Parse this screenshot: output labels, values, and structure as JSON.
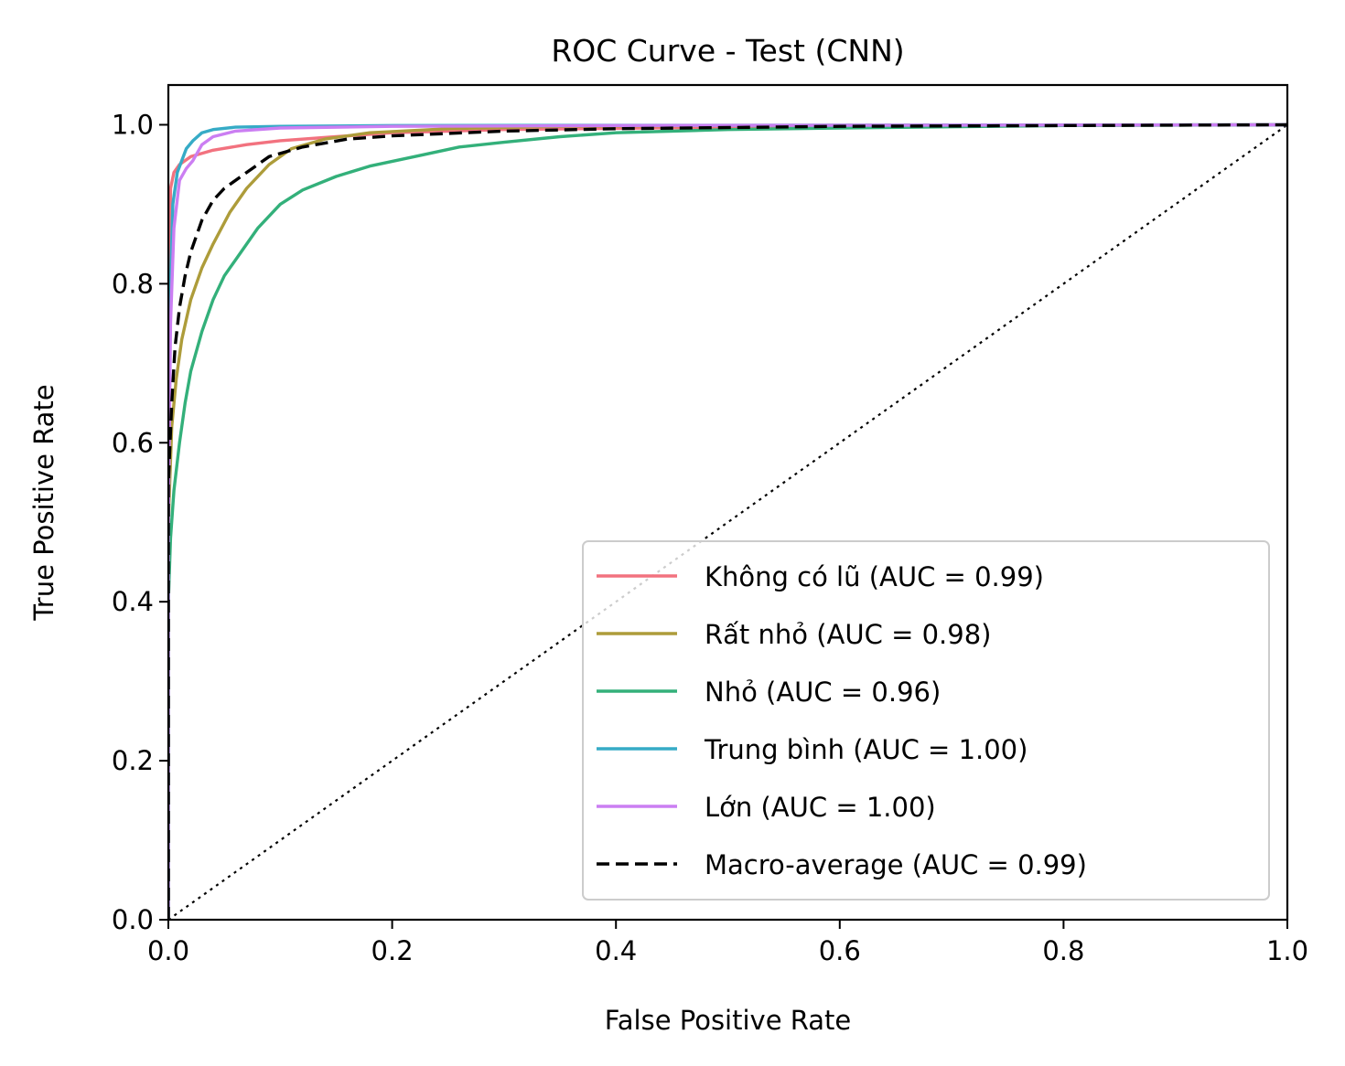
{
  "chart_data": {
    "type": "line",
    "title": "ROC Curve - Test (CNN)",
    "xlabel": "False Positive Rate",
    "ylabel": "True Positive Rate",
    "xlim": [
      0.0,
      1.0
    ],
    "ylim": [
      0.0,
      1.05
    ],
    "xticks": [
      0.0,
      0.2,
      0.4,
      0.6,
      0.8,
      1.0
    ],
    "yticks": [
      0.0,
      0.2,
      0.4,
      0.6,
      0.8,
      1.0
    ],
    "xtick_labels": [
      "0.0",
      "0.2",
      "0.4",
      "0.6",
      "0.8",
      "1.0"
    ],
    "ytick_labels": [
      "0.0",
      "0.2",
      "0.4",
      "0.6",
      "0.8",
      "1.0"
    ],
    "grid": false,
    "legend_position": "lower-right",
    "series": [
      {
        "name": "Không có lũ (AUC = 0.99)",
        "color": "#f2727f",
        "style": "solid",
        "points": [
          [
            0,
            0
          ],
          [
            0,
            0.6
          ],
          [
            0.002,
            0.92
          ],
          [
            0.005,
            0.94
          ],
          [
            0.01,
            0.95
          ],
          [
            0.02,
            0.96
          ],
          [
            0.04,
            0.968
          ],
          [
            0.07,
            0.975
          ],
          [
            0.1,
            0.98
          ],
          [
            0.15,
            0.985
          ],
          [
            0.2,
            0.99
          ],
          [
            0.3,
            0.994
          ],
          [
            0.5,
            0.997
          ],
          [
            0.7,
            0.999
          ],
          [
            1.0,
            1.0
          ]
        ]
      },
      {
        "name": "Rất nhỏ (AUC = 0.98)",
        "color": "#ad9c3a",
        "style": "solid",
        "points": [
          [
            0,
            0
          ],
          [
            0,
            0.5
          ],
          [
            0.003,
            0.62
          ],
          [
            0.007,
            0.68
          ],
          [
            0.012,
            0.73
          ],
          [
            0.02,
            0.78
          ],
          [
            0.03,
            0.82
          ],
          [
            0.04,
            0.85
          ],
          [
            0.055,
            0.89
          ],
          [
            0.07,
            0.92
          ],
          [
            0.09,
            0.95
          ],
          [
            0.11,
            0.97
          ],
          [
            0.14,
            0.982
          ],
          [
            0.18,
            0.99
          ],
          [
            0.25,
            0.995
          ],
          [
            0.35,
            0.998
          ],
          [
            0.5,
            0.999
          ],
          [
            1.0,
            1.0
          ]
        ]
      },
      {
        "name": "Nhỏ (AUC = 0.96)",
        "color": "#33b07a",
        "style": "solid",
        "points": [
          [
            0,
            0
          ],
          [
            0,
            0.4
          ],
          [
            0.002,
            0.48
          ],
          [
            0.005,
            0.54
          ],
          [
            0.01,
            0.6
          ],
          [
            0.015,
            0.65
          ],
          [
            0.02,
            0.69
          ],
          [
            0.03,
            0.74
          ],
          [
            0.04,
            0.78
          ],
          [
            0.05,
            0.81
          ],
          [
            0.065,
            0.84
          ],
          [
            0.08,
            0.87
          ],
          [
            0.1,
            0.9
          ],
          [
            0.12,
            0.918
          ],
          [
            0.15,
            0.935
          ],
          [
            0.18,
            0.948
          ],
          [
            0.22,
            0.96
          ],
          [
            0.26,
            0.972
          ],
          [
            0.3,
            0.978
          ],
          [
            0.35,
            0.985
          ],
          [
            0.4,
            0.99
          ],
          [
            0.5,
            0.994
          ],
          [
            0.6,
            0.996
          ],
          [
            0.8,
            0.999
          ],
          [
            1.0,
            1.0
          ]
        ]
      },
      {
        "name": "Trung bình (AUC = 1.00)",
        "color": "#36abc6",
        "style": "solid",
        "points": [
          [
            0,
            0
          ],
          [
            0,
            0.5
          ],
          [
            0.002,
            0.8
          ],
          [
            0.004,
            0.9
          ],
          [
            0.008,
            0.94
          ],
          [
            0.012,
            0.955
          ],
          [
            0.016,
            0.97
          ],
          [
            0.022,
            0.98
          ],
          [
            0.03,
            0.99
          ],
          [
            0.04,
            0.994
          ],
          [
            0.06,
            0.997
          ],
          [
            0.1,
            0.998
          ],
          [
            0.2,
            0.999
          ],
          [
            1.0,
            1.0
          ]
        ]
      },
      {
        "name": "Lớn (AUC = 1.00)",
        "color": "#cb7ef2",
        "style": "solid",
        "points": [
          [
            0,
            0
          ],
          [
            0,
            0.5
          ],
          [
            0.002,
            0.75
          ],
          [
            0.005,
            0.87
          ],
          [
            0.01,
            0.93
          ],
          [
            0.016,
            0.945
          ],
          [
            0.022,
            0.955
          ],
          [
            0.03,
            0.975
          ],
          [
            0.04,
            0.985
          ],
          [
            0.06,
            0.992
          ],
          [
            0.1,
            0.996
          ],
          [
            0.2,
            0.998
          ],
          [
            0.4,
            0.999
          ],
          [
            1.0,
            1.0
          ]
        ]
      },
      {
        "name": "Macro-average (AUC = 0.99)",
        "color": "#000000",
        "style": "dashed",
        "points": [
          [
            0,
            0
          ],
          [
            0,
            0.55
          ],
          [
            0.003,
            0.65
          ],
          [
            0.006,
            0.72
          ],
          [
            0.01,
            0.77
          ],
          [
            0.015,
            0.81
          ],
          [
            0.02,
            0.84
          ],
          [
            0.03,
            0.88
          ],
          [
            0.04,
            0.905
          ],
          [
            0.05,
            0.92
          ],
          [
            0.07,
            0.94
          ],
          [
            0.09,
            0.96
          ],
          [
            0.12,
            0.972
          ],
          [
            0.16,
            0.982
          ],
          [
            0.2,
            0.986
          ],
          [
            0.3,
            0.992
          ],
          [
            0.4,
            0.995
          ],
          [
            0.6,
            0.998
          ],
          [
            1.0,
            1.0
          ]
        ]
      },
      {
        "name": "",
        "color": "#000000",
        "style": "dotted",
        "points": [
          [
            0,
            0
          ],
          [
            1,
            1
          ]
        ]
      }
    ]
  }
}
